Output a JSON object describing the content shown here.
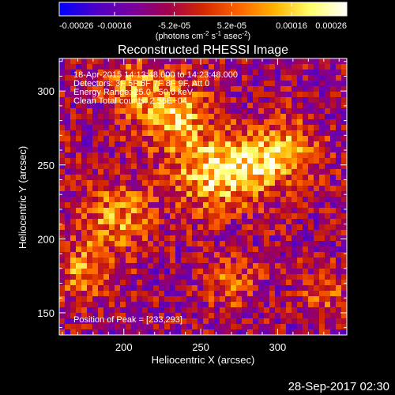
{
  "chart_data": {
    "type": "heatmap",
    "title": "Reconstructed RHESSI Image",
    "xlabel": "Heliocentric X (arcsec)",
    "ylabel": "Heliocentric Y (arcsec)",
    "xlim": [
      158,
      345
    ],
    "ylim": [
      135,
      322
    ],
    "x_ticks": [
      200,
      250,
      300
    ],
    "y_ticks": [
      150,
      200,
      250,
      300
    ],
    "colorbar": {
      "min": -0.00026,
      "max": 0.00026,
      "tick_labels": [
        "-0.00026",
        "-0.00016",
        "-5.2e-05",
        "5.2e-05",
        "0.00016",
        "0.00026"
      ],
      "tick_values": [
        -0.00026,
        -0.00016,
        -5.2e-05,
        5.2e-05,
        0.00016,
        0.00026
      ],
      "unit_parts": [
        "(photons cm",
        "-2",
        " s",
        "-1",
        " asec",
        "-2",
        ")"
      ],
      "colors": [
        "#0000ff",
        "#4b00c8",
        "#7800a0",
        "#a00050",
        "#d22800",
        "#ff6400",
        "#ffb400",
        "#ffff6e",
        "#ffffff"
      ]
    },
    "annotations": [
      "18-Apr-2015 14:13:48.000 to 14:23:48.000",
      "Detectors: 3F 5F 6F 7F 8F 9F, Att 0",
      "Energy Range: 25.0 - 50.0 keV",
      "Clean    Total counts: 2.56E+04"
    ],
    "peak_label": "Position of Peak = [233,293]",
    "peak": [
      233,
      293
    ],
    "emission_features": [
      {
        "x": 230,
        "y": 285,
        "amp": 0.00024,
        "sigma": 16
      },
      {
        "x": 255,
        "y": 245,
        "amp": 0.00022,
        "sigma": 18
      },
      {
        "x": 285,
        "y": 250,
        "amp": 0.0002,
        "sigma": 16
      },
      {
        "x": 310,
        "y": 262,
        "amp": 0.00016,
        "sigma": 14
      },
      {
        "x": 195,
        "y": 215,
        "amp": 0.00018,
        "sigma": 16
      },
      {
        "x": 175,
        "y": 178,
        "amp": 0.00017,
        "sigma": 14
      },
      {
        "x": 270,
        "y": 170,
        "amp": 0.00014,
        "sigma": 12
      },
      {
        "x": 330,
        "y": 165,
        "amp": 0.00012,
        "sigma": 11
      },
      {
        "x": 205,
        "y": 305,
        "amp": 0.00015,
        "sigma": 12
      }
    ]
  },
  "footer": {
    "timestamp": "28-Sep-2017 02:30"
  }
}
